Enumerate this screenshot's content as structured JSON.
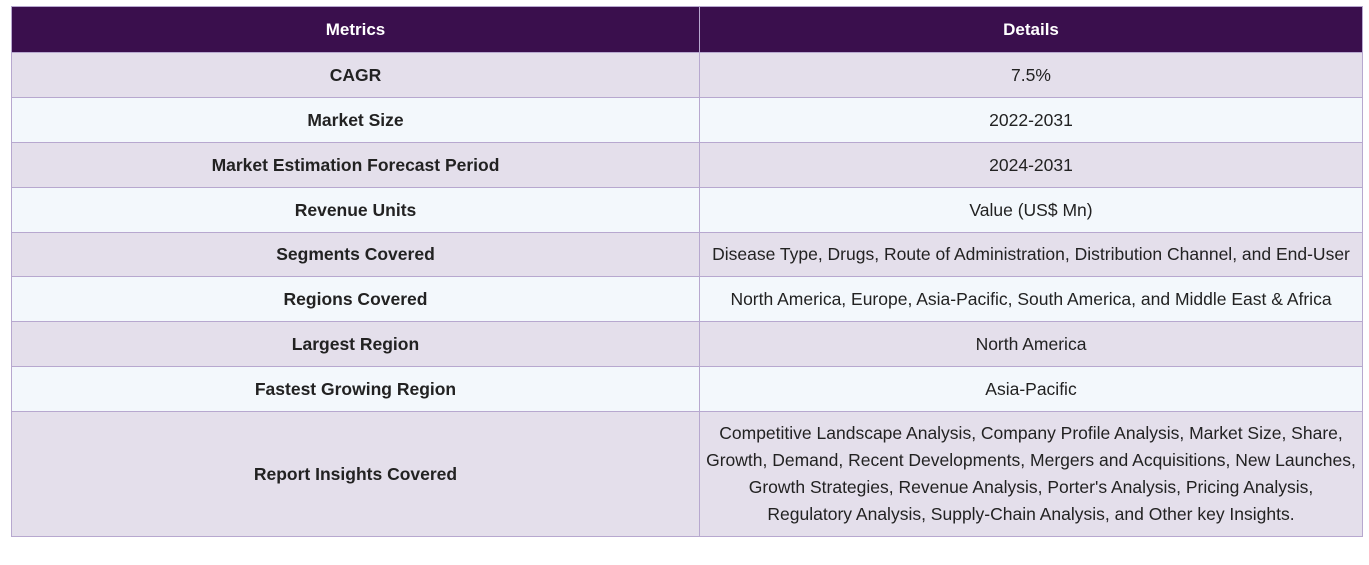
{
  "table": {
    "headers": [
      "Metrics",
      "Details"
    ],
    "rows": [
      {
        "metric": "CAGR",
        "detail": "7.5%"
      },
      {
        "metric": "Market Size",
        "detail": "2022-2031"
      },
      {
        "metric": "Market Estimation Forecast Period",
        "detail": "2024-2031"
      },
      {
        "metric": "Revenue Units",
        "detail": "Value (US$ Mn)"
      },
      {
        "metric": "Segments Covered",
        "detail": "Disease Type, Drugs, Route of Administration, Distribution Channel, and End-User"
      },
      {
        "metric": "Regions Covered",
        "detail": "North America, Europe, Asia-Pacific, South America, and Middle East & Africa"
      },
      {
        "metric": "Largest Region",
        "detail": "North America"
      },
      {
        "metric": "Fastest Growing Region",
        "detail": "Asia-Pacific"
      },
      {
        "metric": "Report Insights Covered",
        "detail": "Competitive Landscape Analysis, Company Profile Analysis, Market Size, Share, Growth, Demand, Recent Developments, Mergers and Acquisitions, New Launches, Growth Strategies, Revenue Analysis, Porter's Analysis, Pricing Analysis, Regulatory Analysis, Supply-Chain Analysis, and Other key Insights."
      }
    ]
  },
  "colors": {
    "header_bg": "#3a0f4d",
    "row_odd": "#e4dfeb",
    "row_even": "#f3f8fc",
    "border": "#b7a8cf"
  }
}
